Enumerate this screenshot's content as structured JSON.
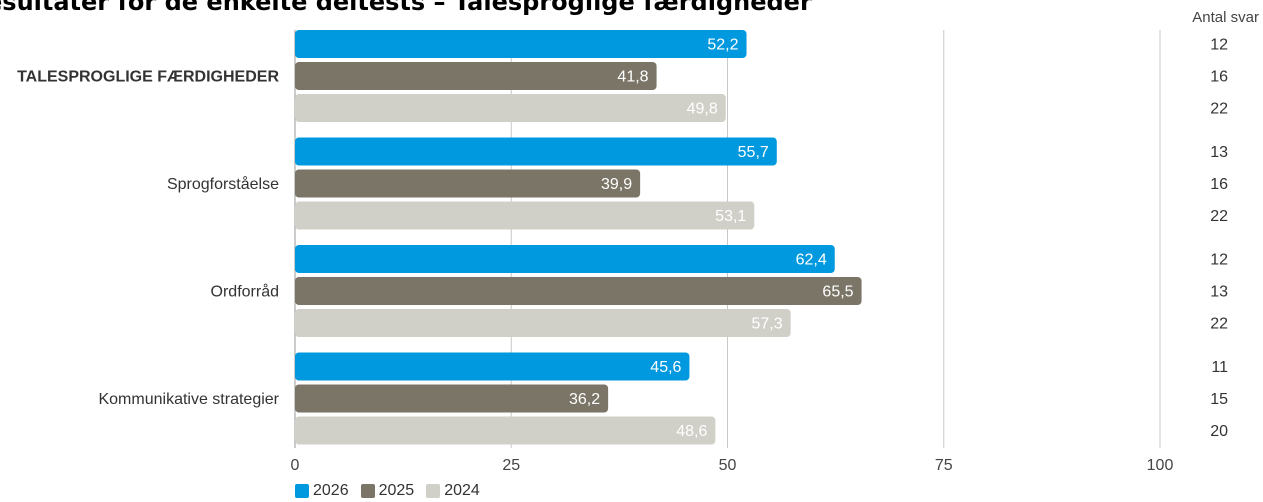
{
  "page_title": "esultater for de enkelte deltests – Talesproglige færdigheder",
  "chart_data": {
    "type": "bar",
    "orientation": "horizontal",
    "title": "esultater for de enkelte deltests – Talesproglige færdigheder",
    "categories": [
      "TALESPROGLIGE FÆRDIGHEDER",
      "Sprogforståelse",
      "Ordforråd",
      "Kommunikative strategier"
    ],
    "series": [
      {
        "name": "2026",
        "color": "#0099DF",
        "label_color": "#ffffff",
        "values": [
          52.2,
          55.7,
          62.4,
          45.6
        ],
        "counts": [
          12,
          13,
          12,
          11
        ]
      },
      {
        "name": "2025",
        "color": "#7A7566",
        "label_color": "#ffffff",
        "values": [
          41.8,
          39.9,
          65.5,
          36.2
        ],
        "counts": [
          16,
          16,
          13,
          15
        ]
      },
      {
        "name": "2024",
        "color": "#D0CFC8",
        "label_color": "#ffffff",
        "values": [
          49.8,
          53.1,
          57.3,
          48.6
        ],
        "counts": [
          22,
          22,
          22,
          20
        ]
      }
    ],
    "xlim": [
      0,
      100
    ],
    "xticks": [
      0,
      25,
      50,
      75,
      100
    ],
    "xlabel": "",
    "ylabel": "",
    "count_header": "Antal svar",
    "grid": true,
    "legend_position": "bottom-left",
    "decimal_separator": ","
  }
}
